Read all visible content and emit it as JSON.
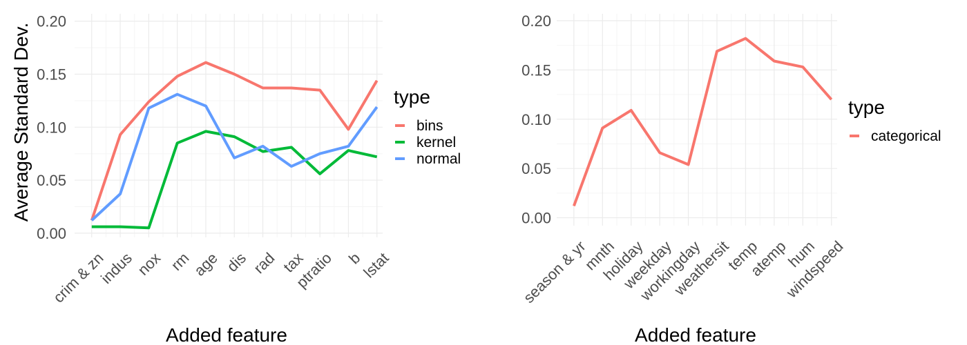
{
  "colors": {
    "bins": "#F8766D",
    "kernel": "#00BA38",
    "normal": "#619CFF",
    "categorical": "#F8766D",
    "axis_text": "#4D4D4D",
    "grid_major": "#EBEBEB",
    "grid_minor": "#F5F5F5"
  },
  "chart_data": [
    {
      "type": "line",
      "xlabel": "Added feature",
      "ylabel": "Average Standard Dev.",
      "ylim": [
        -0.004,
        0.207
      ],
      "yticks": [
        0.0,
        0.05,
        0.1,
        0.15,
        0.2
      ],
      "ytick_labels": [
        "0.00",
        "0.05",
        "0.10",
        "0.15",
        "0.20"
      ],
      "grid": true,
      "legend": {
        "title": "type",
        "position": "right"
      },
      "categories": [
        "crim & zn",
        "indus",
        "nox",
        "rm",
        "age",
        "dis",
        "rad",
        "tax",
        "ptratio",
        "b",
        "lstat"
      ],
      "series": [
        {
          "name": "bins",
          "values": [
            0.012,
            0.093,
            0.124,
            0.148,
            0.161,
            0.15,
            0.137,
            0.137,
            0.135,
            0.098,
            0.144
          ]
        },
        {
          "name": "kernel",
          "values": [
            0.006,
            0.006,
            0.005,
            0.085,
            0.096,
            0.091,
            0.077,
            0.081,
            0.056,
            0.078,
            0.072
          ]
        },
        {
          "name": "normal",
          "values": [
            0.012,
            0.037,
            0.118,
            0.131,
            0.12,
            0.071,
            0.082,
            0.063,
            0.075,
            0.082,
            0.119
          ]
        }
      ]
    },
    {
      "type": "line",
      "xlabel": "Added feature",
      "ylabel": "",
      "ylim": [
        -0.008,
        0.207
      ],
      "yticks": [
        0.0,
        0.05,
        0.1,
        0.15,
        0.2
      ],
      "ytick_labels": [
        "0.00",
        "0.05",
        "0.10",
        "0.15",
        "0.20"
      ],
      "grid": true,
      "legend": {
        "title": "type",
        "position": "right"
      },
      "categories": [
        "season & yr",
        "mnth",
        "holiday",
        "weekday",
        "workingday",
        "weathersit",
        "temp",
        "atemp",
        "hum",
        "windspeed"
      ],
      "series": [
        {
          "name": "categorical",
          "values": [
            0.012,
            0.091,
            0.109,
            0.066,
            0.054,
            0.169,
            0.182,
            0.159,
            0.153,
            0.12
          ]
        }
      ]
    }
  ]
}
